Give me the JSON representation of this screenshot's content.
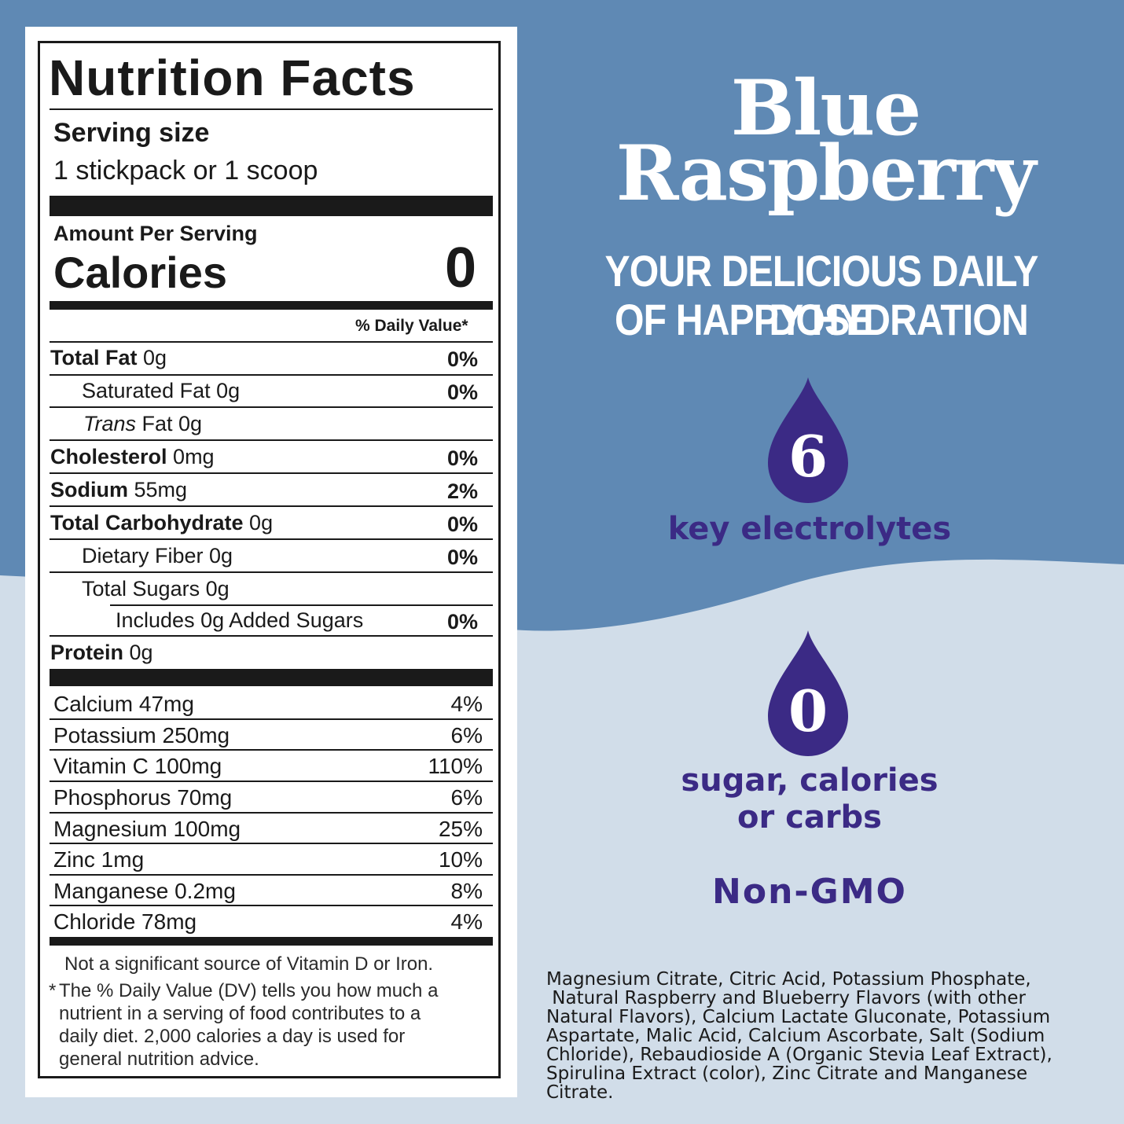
{
  "colors": {
    "top_blue": "#5f89b4",
    "light_blue": "#d1dde9",
    "purple": "#3b2a85",
    "white": "#ffffff",
    "ink": "#1a1a1a"
  },
  "nutrition": {
    "title": "Nutrition Facts",
    "serving_size_label": "Serving size",
    "serving_size_value": "1 stickpack or 1 scoop",
    "amount_per_serving": "Amount Per Serving",
    "calories_label": "Calories",
    "calories_value": "0",
    "daily_value_header": "% Daily Value*",
    "rows": [
      {
        "label": "Total Fat",
        "amount": "0g",
        "dv": "0%"
      },
      {
        "label": "Saturated Fat 0g",
        "dv": "0%"
      },
      {
        "label_italic": "Trans",
        "label": "Fat 0g"
      },
      {
        "label": "Cholesterol",
        "amount": "0mg",
        "dv": "0%"
      },
      {
        "label": "Sodium",
        "amount": "55mg",
        "dv": "2%"
      },
      {
        "label": "Total Carbohydrate",
        "amount": "0g",
        "dv": "0%"
      },
      {
        "label": "Dietary Fiber 0g",
        "dv": "0%"
      },
      {
        "label": "Total Sugars 0g"
      },
      {
        "label": "Includes 0g Added Sugars",
        "dv": "0%"
      },
      {
        "label": "Protein",
        "amount": "0g"
      }
    ],
    "vitamins": [
      {
        "label": "Calcium 47mg",
        "dv": "4%"
      },
      {
        "label": "Potassium 250mg",
        "dv": "6%"
      },
      {
        "label": "Vitamin C 100mg",
        "dv": "110%"
      },
      {
        "label": "Phosphorus 70mg",
        "dv": "6%"
      },
      {
        "label": "Magnesium 100mg",
        "dv": "25%"
      },
      {
        "label": "Zinc 1mg",
        "dv": "10%"
      },
      {
        "label": "Manganese 0.2mg",
        "dv": "8%"
      },
      {
        "label": "Chloride 78mg",
        "dv": "4%"
      }
    ],
    "note": "Not a significant source of Vitamin D or Iron.",
    "footnote_star": "*",
    "footnote_lines": [
      "The % Daily Value (DV) tells you how much a",
      "nutrient in a serving of food contributes to a",
      "daily diet. 2,000 calories a day is used for",
      "general nutrition advice."
    ]
  },
  "product": {
    "name_line1": "Blue",
    "name_line2": "Raspberry",
    "tagline_line1": "YOUR DELICIOUS DAILY DOSE",
    "tagline_line2": "OF HAPPY HYDRATION",
    "badge1": {
      "number": "6",
      "icon": "water-drop-icon",
      "text": "key electrolytes"
    },
    "badge2": {
      "number": "0",
      "icon": "water-drop-icon",
      "text_line1": "sugar, calories",
      "text_line2": "or carbs"
    },
    "non_gmo": "Non-GMO",
    "ingredients_lines": [
      "Magnesium Citrate, Citric Acid, Potassium Phosphate,",
      " Natural Raspberry and Blueberry Flavors (with other",
      "Natural Flavors), Calcium Lactate Gluconate, Potassium",
      "Aspartate, Malic Acid, Calcium Ascorbate, Salt (Sodium",
      "Chloride), Rebaudioside A (Organic Stevia Leaf Extract),",
      "Spirulina Extract (color), Zinc Citrate and Manganese",
      "Citrate."
    ]
  }
}
